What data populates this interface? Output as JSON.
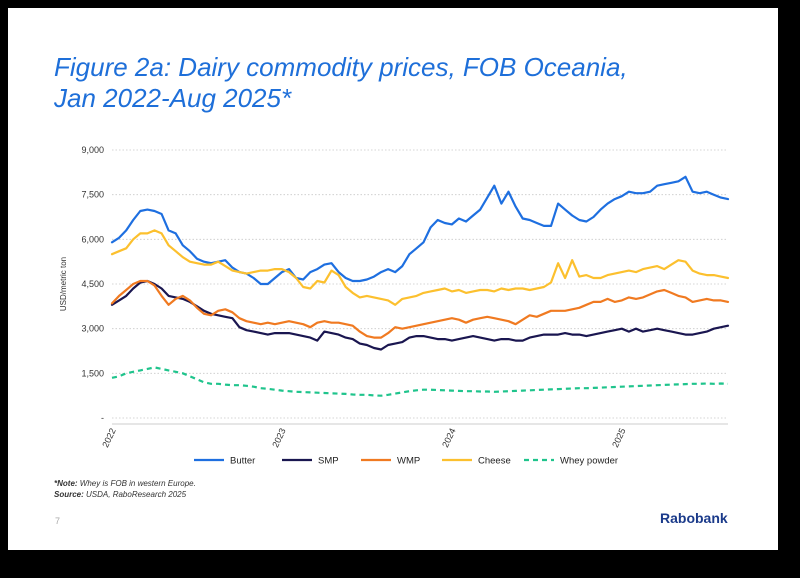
{
  "title_line1": "Figure 2a: Dairy commodity prices, FOB Oceania,",
  "title_line2": "Jan 2022-Aug 2025*",
  "footnote": {
    "note_label": "*Note:",
    "note_text": " Whey is FOB in western Europe.",
    "source_label": "Source:",
    "source_text": " USDA, RaboResearch 2025"
  },
  "page_number": "7",
  "brand": "Rabobank",
  "colors": {
    "butter": "#1e6fe0",
    "smp": "#1a1650",
    "wmp": "#f07a21",
    "cheese": "#fcc02e",
    "whey": "#1fc48c"
  },
  "chart_data": {
    "type": "line",
    "title": "Figure 2a: Dairy commodity prices, FOB Oceania, Jan 2022-Aug 2025*",
    "ylabel": "USD/metric ton",
    "xlabel": "",
    "ylim": [
      0,
      9000
    ],
    "yticks": [
      0,
      1500,
      3000,
      4500,
      6000,
      7500,
      9000
    ],
    "ytick_labels": [
      "-",
      "1,500",
      "3,000",
      "4,500",
      "6,000",
      "7,500",
      "9,000"
    ],
    "xlim": [
      0,
      43.5
    ],
    "xticks": [
      0,
      12,
      24,
      36
    ],
    "xtick_labels": [
      "2022",
      "2023",
      "2024",
      "2025"
    ],
    "grid": "horizontal dotted",
    "legend_position": "bottom",
    "series": [
      {
        "name": "Butter",
        "key": "butter",
        "dash": "solid",
        "x": [
          0,
          0.5,
          1,
          1.5,
          2,
          2.5,
          3,
          3.5,
          4,
          4.5,
          5,
          5.5,
          6,
          6.5,
          7,
          7.5,
          8,
          8.5,
          9,
          9.5,
          10,
          10.5,
          11,
          11.5,
          12,
          12.5,
          13,
          13.5,
          14,
          14.5,
          15,
          15.5,
          16,
          16.5,
          17,
          17.5,
          18,
          18.5,
          19,
          19.5,
          20,
          20.5,
          21,
          21.5,
          22,
          22.5,
          23,
          23.5,
          24,
          24.5,
          25,
          25.5,
          26,
          26.5,
          27,
          27.5,
          28,
          28.5,
          29,
          29.5,
          30,
          30.5,
          31,
          31.5,
          32,
          32.5,
          33,
          33.5,
          34,
          34.5,
          35,
          35.5,
          36,
          36.5,
          37,
          37.5,
          38,
          38.5,
          39,
          39.5,
          40,
          40.5,
          41,
          41.5,
          42,
          42.5,
          43,
          43.5
        ],
        "values": [
          5900,
          6050,
          6300,
          6650,
          6950,
          7000,
          6950,
          6850,
          6300,
          6200,
          5800,
          5600,
          5350,
          5250,
          5200,
          5250,
          5300,
          5050,
          4900,
          4850,
          4700,
          4500,
          4500,
          4700,
          4900,
          5000,
          4700,
          4650,
          4900,
          5000,
          5150,
          5200,
          4900,
          4700,
          4600,
          4600,
          4650,
          4750,
          4900,
          5000,
          4900,
          5100,
          5500,
          5700,
          5900,
          6400,
          6650,
          6550,
          6500,
          6700,
          6600,
          6800,
          7000,
          7400,
          7800,
          7200,
          7600,
          7100,
          6700,
          6650,
          6550,
          6450,
          6450,
          7200,
          7000,
          6800,
          6650,
          6600,
          6750,
          7000,
          7200,
          7350,
          7450,
          7600,
          7550,
          7550,
          7600,
          7800,
          7850,
          7900,
          7950,
          8100,
          7600,
          7550,
          7600,
          7500,
          7400,
          7350
        ]
      },
      {
        "name": "SMP",
        "key": "smp",
        "dash": "solid",
        "x": [
          0,
          0.5,
          1,
          1.5,
          2,
          2.5,
          3,
          3.5,
          4,
          4.5,
          5,
          5.5,
          6,
          6.5,
          7,
          7.5,
          8,
          8.5,
          9,
          9.5,
          10,
          10.5,
          11,
          11.5,
          12,
          12.5,
          13,
          13.5,
          14,
          14.5,
          15,
          15.5,
          16,
          16.5,
          17,
          17.5,
          18,
          18.5,
          19,
          19.5,
          20,
          20.5,
          21,
          21.5,
          22,
          22.5,
          23,
          23.5,
          24,
          24.5,
          25,
          25.5,
          26,
          26.5,
          27,
          27.5,
          28,
          28.5,
          29,
          29.5,
          30,
          30.5,
          31,
          31.5,
          32,
          32.5,
          33,
          33.5,
          34,
          34.5,
          35,
          35.5,
          36,
          36.5,
          37,
          37.5,
          38,
          38.5,
          39,
          39.5,
          40,
          40.5,
          41,
          41.5,
          42,
          42.5,
          43,
          43.5
        ],
        "values": [
          3800,
          3950,
          4100,
          4350,
          4550,
          4600,
          4500,
          4350,
          4100,
          4050,
          4000,
          3900,
          3750,
          3600,
          3500,
          3450,
          3400,
          3350,
          3050,
          2950,
          2900,
          2850,
          2800,
          2850,
          2850,
          2850,
          2800,
          2750,
          2700,
          2600,
          2900,
          2850,
          2800,
          2700,
          2650,
          2500,
          2450,
          2350,
          2300,
          2450,
          2500,
          2550,
          2700,
          2750,
          2750,
          2700,
          2650,
          2650,
          2600,
          2650,
          2700,
          2750,
          2700,
          2650,
          2600,
          2650,
          2650,
          2600,
          2600,
          2700,
          2750,
          2800,
          2800,
          2800,
          2850,
          2800,
          2800,
          2750,
          2800,
          2850,
          2900,
          2950,
          3000,
          2900,
          3000,
          2900,
          2950,
          3000,
          2950,
          2900,
          2850,
          2800,
          2800,
          2850,
          2900,
          3000,
          3050,
          3100
        ]
      },
      {
        "name": "WMP",
        "key": "wmp",
        "dash": "solid",
        "x": [
          0,
          0.5,
          1,
          1.5,
          2,
          2.5,
          3,
          3.5,
          4,
          4.5,
          5,
          5.5,
          6,
          6.5,
          7,
          7.5,
          8,
          8.5,
          9,
          9.5,
          10,
          10.5,
          11,
          11.5,
          12,
          12.5,
          13,
          13.5,
          14,
          14.5,
          15,
          15.5,
          16,
          16.5,
          17,
          17.5,
          18,
          18.5,
          19,
          19.5,
          20,
          20.5,
          21,
          21.5,
          22,
          22.5,
          23,
          23.5,
          24,
          24.5,
          25,
          25.5,
          26,
          26.5,
          27,
          27.5,
          28,
          28.5,
          29,
          29.5,
          30,
          30.5,
          31,
          31.5,
          32,
          32.5,
          33,
          33.5,
          34,
          34.5,
          35,
          35.5,
          36,
          36.5,
          37,
          37.5,
          38,
          38.5,
          39,
          39.5,
          40,
          40.5,
          41,
          41.5,
          42,
          42.5,
          43,
          43.5
        ],
        "values": [
          3850,
          4100,
          4300,
          4500,
          4600,
          4600,
          4450,
          4100,
          3800,
          4000,
          4100,
          3950,
          3700,
          3500,
          3450,
          3600,
          3650,
          3550,
          3350,
          3250,
          3200,
          3150,
          3200,
          3150,
          3200,
          3250,
          3200,
          3150,
          3050,
          3200,
          3250,
          3200,
          3200,
          3150,
          3100,
          2900,
          2750,
          2700,
          2700,
          2850,
          3050,
          3000,
          3050,
          3100,
          3150,
          3200,
          3250,
          3300,
          3350,
          3300,
          3200,
          3300,
          3350,
          3400,
          3350,
          3300,
          3250,
          3150,
          3300,
          3450,
          3400,
          3500,
          3600,
          3600,
          3600,
          3650,
          3700,
          3800,
          3900,
          3900,
          4000,
          3900,
          3950,
          4050,
          4000,
          4050,
          4150,
          4250,
          4300,
          4200,
          4100,
          4050,
          3900,
          3950,
          4000,
          3950,
          3950,
          3900
        ]
      },
      {
        "name": "Cheese",
        "key": "cheese",
        "dash": "solid",
        "x": [
          0,
          0.5,
          1,
          1.5,
          2,
          2.5,
          3,
          3.5,
          4,
          4.5,
          5,
          5.5,
          6,
          6.5,
          7,
          7.5,
          8,
          8.5,
          9,
          9.5,
          10,
          10.5,
          11,
          11.5,
          12,
          12.5,
          13,
          13.5,
          14,
          14.5,
          15,
          15.5,
          16,
          16.5,
          17,
          17.5,
          18,
          18.5,
          19,
          19.5,
          20,
          20.5,
          21,
          21.5,
          22,
          22.5,
          23,
          23.5,
          24,
          24.5,
          25,
          25.5,
          26,
          26.5,
          27,
          27.5,
          28,
          28.5,
          29,
          29.5,
          30,
          30.5,
          31,
          31.5,
          32,
          32.5,
          33,
          33.5,
          34,
          34.5,
          35,
          35.5,
          36,
          36.5,
          37,
          37.5,
          38,
          38.5,
          39,
          39.5,
          40,
          40.5,
          41,
          41.5,
          42,
          42.5,
          43,
          43.5
        ],
        "values": [
          5500,
          5600,
          5700,
          6000,
          6200,
          6200,
          6300,
          6200,
          5800,
          5600,
          5400,
          5250,
          5200,
          5150,
          5150,
          5250,
          5100,
          4950,
          4900,
          4850,
          4900,
          4950,
          4950,
          5000,
          5000,
          4900,
          4700,
          4400,
          4350,
          4600,
          4550,
          4950,
          4800,
          4400,
          4200,
          4050,
          4100,
          4050,
          4000,
          3950,
          3800,
          4000,
          4050,
          4100,
          4200,
          4250,
          4300,
          4350,
          4250,
          4300,
          4200,
          4250,
          4300,
          4300,
          4250,
          4350,
          4300,
          4350,
          4350,
          4300,
          4350,
          4400,
          4550,
          5200,
          4700,
          5300,
          4750,
          4800,
          4700,
          4700,
          4800,
          4850,
          4900,
          4950,
          4900,
          5000,
          5050,
          5100,
          5000,
          5150,
          5300,
          5250,
          4950,
          4850,
          4800,
          4800,
          4750,
          4700
        ]
      },
      {
        "name": "Whey powder",
        "key": "whey",
        "dash": "dashed",
        "x": [
          0,
          0.5,
          1,
          1.5,
          2,
          2.5,
          3,
          3.5,
          4,
          4.5,
          5,
          5.5,
          6,
          6.5,
          7,
          7.5,
          8,
          8.5,
          9,
          9.5,
          10,
          10.5,
          11,
          11.5,
          12,
          12.5,
          13,
          13.5,
          14,
          14.5,
          15,
          15.5,
          16,
          16.5,
          17,
          17.5,
          18,
          18.5,
          19,
          19.5,
          20,
          20.5,
          21,
          21.5,
          22,
          22.5,
          23,
          23.5,
          24,
          24.5,
          25,
          25.5,
          26,
          26.5,
          27,
          27.5,
          28,
          28.5,
          29,
          29.5,
          30,
          30.5,
          31,
          31.5,
          32,
          32.5,
          33,
          33.5,
          34,
          34.5,
          35,
          35.5,
          36,
          36.5,
          37,
          37.5,
          38,
          38.5,
          39,
          39.5,
          40,
          40.5,
          41,
          41.5,
          42,
          42.5,
          43,
          43.5
        ],
        "values": [
          1350,
          1400,
          1500,
          1550,
          1600,
          1650,
          1700,
          1650,
          1600,
          1550,
          1500,
          1400,
          1300,
          1200,
          1150,
          1150,
          1120,
          1100,
          1100,
          1080,
          1050,
          1000,
          980,
          950,
          920,
          900,
          880,
          870,
          860,
          850,
          840,
          830,
          820,
          810,
          790,
          780,
          780,
          760,
          750,
          780,
          820,
          860,
          900,
          930,
          950,
          950,
          940,
          930,
          920,
          910,
          900,
          900,
          890,
          890,
          880,
          890,
          900,
          910,
          920,
          930,
          940,
          950,
          960,
          970,
          980,
          990,
          1000,
          1000,
          1010,
          1020,
          1030,
          1040,
          1050,
          1060,
          1070,
          1080,
          1090,
          1100,
          1110,
          1120,
          1130,
          1140,
          1150,
          1150,
          1160,
          1150,
          1160,
          1150
        ]
      }
    ]
  }
}
